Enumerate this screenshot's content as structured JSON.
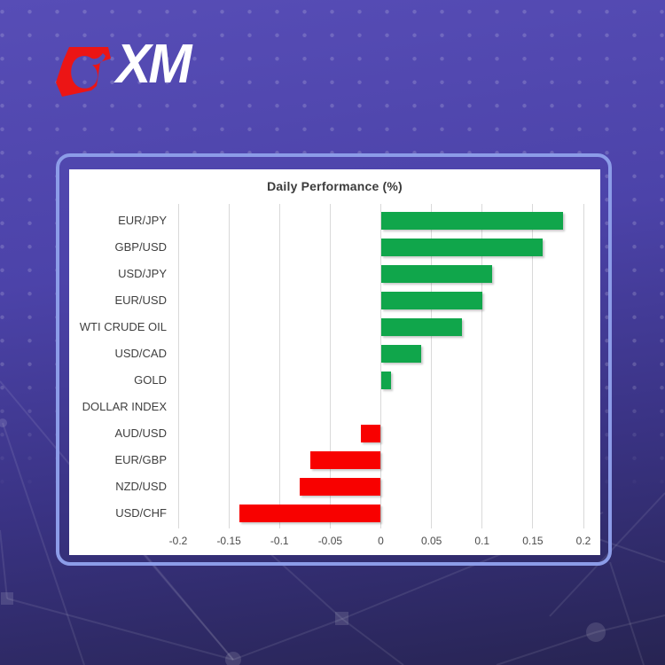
{
  "brand": {
    "name": "XM",
    "icon": "xm-bull-icon",
    "red": "#EC1515"
  },
  "background": {
    "gradient_top": "#574DB6",
    "gradient_bottom": "#272452",
    "card_border": "#8C9CE8"
  },
  "chart_data": {
    "type": "bar",
    "orientation": "horizontal",
    "title": "Daily Performance (%)",
    "categories": [
      "EUR/JPY",
      "GBP/USD",
      "USD/JPY",
      "EUR/USD",
      "WTI CRUDE OIL",
      "USD/CAD",
      "GOLD",
      "DOLLAR INDEX",
      "AUD/USD",
      "EUR/GBP",
      "NZD/USD",
      "USD/CHF"
    ],
    "values": [
      0.18,
      0.16,
      0.11,
      0.1,
      0.08,
      0.04,
      0.01,
      0.0,
      -0.02,
      -0.07,
      -0.08,
      -0.14
    ],
    "xlim": [
      -0.2,
      0.2
    ],
    "x_ticks": [
      -0.2,
      -0.15,
      -0.1,
      -0.05,
      0,
      0.05,
      0.1,
      0.15,
      0.2
    ],
    "x_tick_labels": [
      "-0.2",
      "-0.15",
      "-0.1",
      "-0.05",
      "0",
      "0.05",
      "0.1",
      "0.15",
      "0.2"
    ],
    "positive_color": "#10A64B",
    "negative_color": "#F80100",
    "gridline_color": "#D9D9D9",
    "grid": true,
    "legend": false,
    "plot_background": "#FFFFFF"
  }
}
